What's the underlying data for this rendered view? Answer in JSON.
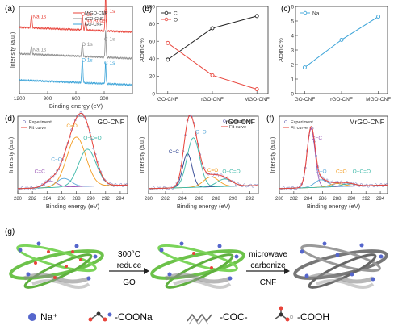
{
  "colors": {
    "black": "#222222",
    "red": "#e8433a",
    "gray": "#8c8c8c",
    "blue": "#3aa3d8",
    "axis": "#333333",
    "fitRed": "#e8433a",
    "expDot": "#6b6bb5",
    "orange": "#f39c1f",
    "teal": "#3cb8a8",
    "navy": "#2a3f8f",
    "sky": "#5aa8d9",
    "purple": "#9b59b6",
    "green": "#6cc24a",
    "naBlue": "#5566cc"
  },
  "panels": {
    "a": "(a)",
    "b": "(b)",
    "c": "(c)",
    "d": "(d)",
    "e": "(e)",
    "f": "(f)",
    "g": "(g)"
  },
  "chart_data": [
    {
      "id": "a",
      "type": "line",
      "xlabel": "Binding energy (eV)",
      "ylabel": "Intensity (a.u.)",
      "xlim": [
        1200,
        0
      ],
      "xticks": [
        "1200",
        "900",
        "600",
        "300"
      ],
      "legend": [
        "MrGO-CNF",
        "rGO-CNF",
        "GO-CNF"
      ],
      "series": [
        {
          "name": "MrGO-CNF",
          "color": "red",
          "offset": 2.0,
          "peaks": [
            [
              285,
              1.5,
              5
            ],
            [
              532,
              0.6,
              6
            ],
            [
              1072,
              0.5,
              6
            ],
            [
              497,
              0.35,
              6
            ]
          ]
        },
        {
          "name": "rGO-CNF",
          "color": "gray",
          "offset": 1.0,
          "peaks": [
            [
              285,
              1.0,
              5
            ],
            [
              532,
              0.5,
              6
            ],
            [
              1072,
              0.3,
              6
            ]
          ]
        },
        {
          "name": "GO-CNF",
          "color": "blue",
          "offset": 0.0,
          "peaks": [
            [
              285,
              0.8,
              5
            ],
            [
              532,
              0.9,
              6
            ]
          ]
        }
      ],
      "annotations": [
        {
          "text": "C 1s",
          "x": 300,
          "y": 2.9,
          "color": "red"
        },
        {
          "text": "Na Auger",
          "x": 500,
          "y": 2.55,
          "color": "red"
        },
        {
          "text": "O 1s",
          "x": 545,
          "y": 2.8,
          "color": "red"
        },
        {
          "text": "Na 1s",
          "x": 1060,
          "y": 2.7,
          "color": "red"
        },
        {
          "text": "C 1s",
          "x": 300,
          "y": 1.85,
          "color": "gray"
        },
        {
          "text": "O 1s",
          "x": 540,
          "y": 1.65,
          "color": "gray"
        },
        {
          "text": "Na 1s",
          "x": 1060,
          "y": 1.45,
          "color": "gray"
        },
        {
          "text": "C 1s",
          "x": 300,
          "y": 0.95,
          "color": "blue"
        },
        {
          "text": "O 1s",
          "x": 540,
          "y": 1.05,
          "color": "blue"
        }
      ]
    },
    {
      "id": "b",
      "type": "line",
      "xlabel": "",
      "ylabel": "Atomic %",
      "categories": [
        "GO-CNF",
        "rGO-CNF",
        "MGO-CNF"
      ],
      "ylim": [
        0,
        100
      ],
      "yticks": [
        "0",
        "20",
        "40",
        "60",
        "80",
        "100"
      ],
      "series": [
        {
          "name": "C",
          "color": "black",
          "values": [
            39,
            75,
            89
          ]
        },
        {
          "name": "O",
          "color": "red",
          "values": [
            58,
            21,
            5
          ]
        }
      ]
    },
    {
      "id": "c",
      "type": "line",
      "xlabel": "",
      "ylabel": "Atomic %",
      "categories": [
        "GO-CNF",
        "rGO-CNF",
        "MGO-CNF"
      ],
      "ylim": [
        0,
        6
      ],
      "yticks": [
        "0",
        "1",
        "2",
        "3",
        "4",
        "5",
        "6"
      ],
      "series": [
        {
          "name": "Na",
          "color": "blue",
          "values": [
            1.8,
            3.7,
            5.3
          ]
        }
      ]
    },
    {
      "id": "d",
      "type": "line",
      "title": "GO-CNF",
      "xlabel": "Binding energy (eV)",
      "ylabel": "Intensity (a.u.)",
      "xlim": [
        280,
        295
      ],
      "xticks": [
        "280",
        "282",
        "284",
        "286",
        "288",
        "290",
        "292",
        "294"
      ],
      "legend": [
        "Experiment",
        "Fit curve"
      ],
      "components": [
        {
          "name": "C=C",
          "center": 284.5,
          "height": 0.1,
          "width": 0.9,
          "color": "purple"
        },
        {
          "name": "C−O",
          "center": 286.3,
          "height": 0.14,
          "width": 1.0,
          "color": "sky"
        },
        {
          "name": "C=O",
          "center": 288.0,
          "height": 0.8,
          "width": 1.3,
          "color": "orange"
        },
        {
          "name": "O−C=O",
          "center": 289.5,
          "height": 0.6,
          "width": 1.2,
          "color": "teal"
        }
      ],
      "labels": [
        {
          "text": "C=C",
          "x": 283.0,
          "y": 0.28,
          "color": "purple"
        },
        {
          "text": "C−O",
          "x": 285.3,
          "y": 0.48,
          "color": "sky"
        },
        {
          "text": "C=O",
          "x": 287.4,
          "y": 1.02,
          "color": "orange"
        },
        {
          "text": "O−C=O",
          "x": 290.2,
          "y": 0.82,
          "color": "teal"
        }
      ]
    },
    {
      "id": "e",
      "type": "line",
      "title": "rGO-CNF",
      "xlabel": "Binding energy (eV)",
      "ylabel": "Intensity (a.u.)",
      "xlim": [
        280,
        293
      ],
      "xticks": [
        "280",
        "282",
        "284",
        "286",
        "288",
        "290",
        "292"
      ],
      "legend": [
        "Experiment",
        "Fit curve"
      ],
      "components": [
        {
          "name": "C−C",
          "center": 284.6,
          "height": 0.55,
          "width": 0.55,
          "color": "navy"
        },
        {
          "name": "C−O",
          "center": 285.3,
          "height": 0.8,
          "width": 0.75,
          "color": "teal"
        },
        {
          "name": "C=O",
          "center": 287.4,
          "height": 0.16,
          "width": 0.9,
          "color": "orange"
        },
        {
          "name": "O−C=O",
          "center": 289.0,
          "height": 0.12,
          "width": 0.9,
          "color": "teal"
        }
      ],
      "labels": [
        {
          "text": "C−C",
          "x": 283.0,
          "y": 0.6,
          "color": "navy"
        },
        {
          "text": "C−O",
          "x": 286.2,
          "y": 0.92,
          "color": "sky"
        },
        {
          "text": "C=O",
          "x": 287.6,
          "y": 0.3,
          "color": "orange"
        },
        {
          "text": "O−C=O",
          "x": 289.8,
          "y": 0.28,
          "color": "teal"
        }
      ]
    },
    {
      "id": "f",
      "type": "line",
      "title": "MrGO-CNF",
      "xlabel": "Binding energy (eV)",
      "ylabel": "Intensity (a.u.)",
      "xlim": [
        280,
        295
      ],
      "xticks": [
        "280",
        "282",
        "284",
        "286",
        "288",
        "290",
        "292",
        "294"
      ],
      "legend": [
        "Experiment",
        "Fit curve"
      ],
      "components": [
        {
          "name": "C−C",
          "center": 284.4,
          "height": 0.95,
          "width": 0.55,
          "color": "purple"
        },
        {
          "name": "C−O",
          "center": 285.8,
          "height": 0.12,
          "width": 0.9,
          "color": "sky"
        },
        {
          "name": "C=O",
          "center": 288.0,
          "height": 0.05,
          "width": 1.0,
          "color": "orange"
        },
        {
          "name": "O−C=O",
          "center": 289.6,
          "height": 0.04,
          "width": 1.0,
          "color": "teal"
        }
      ],
      "labels": [
        {
          "text": "C−C",
          "x": 285.2,
          "y": 0.82,
          "color": "purple"
        },
        {
          "text": "C−O",
          "x": 285.8,
          "y": 0.28,
          "color": "sky"
        },
        {
          "text": "C=O",
          "x": 288.6,
          "y": 0.28,
          "color": "orange"
        },
        {
          "text": "O−C=O",
          "x": 291.4,
          "y": 0.28,
          "color": "teal"
        }
      ]
    }
  ],
  "schematic": {
    "step1": [
      "300°C",
      "reduce",
      "GO"
    ],
    "step2": [
      "microwave",
      "carbonize",
      "CNF"
    ],
    "legend": [
      {
        "label": "Na⁺"
      },
      {
        "label": "-COONa"
      },
      {
        "label": "-COC-"
      },
      {
        "label": "-COOH"
      }
    ]
  }
}
